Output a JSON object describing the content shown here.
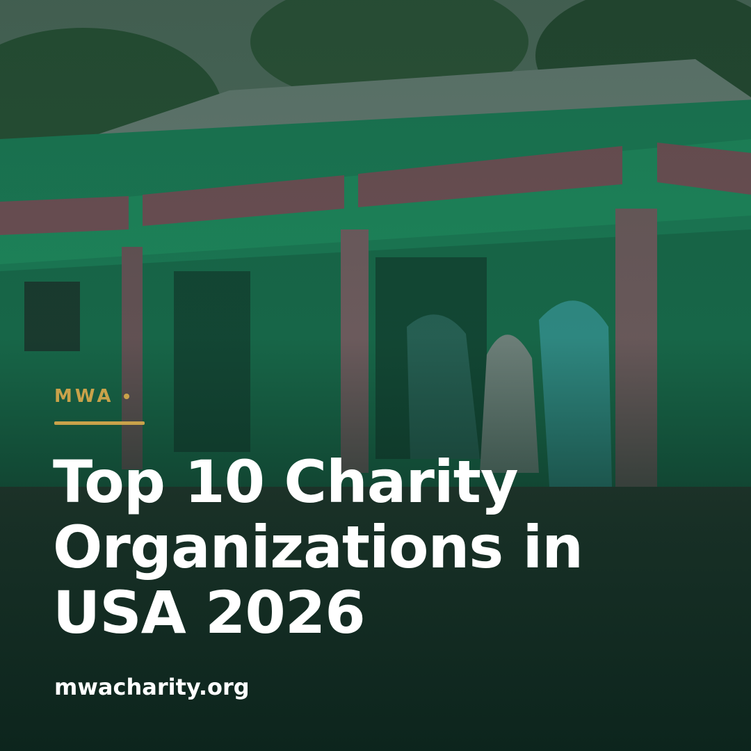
{
  "brand": "MWA",
  "title_lines": [
    "Top 10 Charity",
    "Organizations in",
    "USA 2026"
  ],
  "website": "mwacharity.org"
}
